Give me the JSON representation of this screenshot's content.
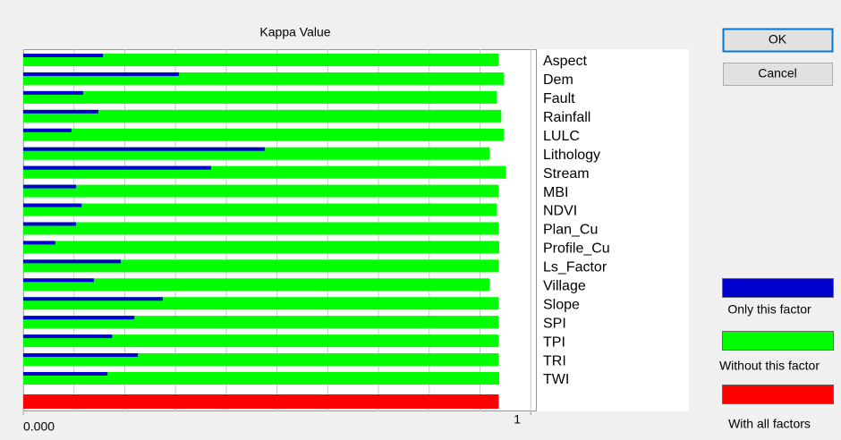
{
  "chart_data": {
    "type": "bar",
    "orientation": "horizontal",
    "title": "Kappa Value",
    "categories": [
      "Aspect",
      "Dem",
      "Fault",
      "Rainfall",
      "LULC",
      "Lithology",
      "Stream",
      "MBI",
      "NDVI",
      "Plan_Cu",
      "Profile_Cu",
      "Ls_Factor",
      "Village",
      "Slope",
      "SPI",
      "TPI",
      "TRI",
      "TWI"
    ],
    "series": [
      {
        "name": "Only this factor",
        "color": "#0000cc",
        "values": [
          0.157,
          0.307,
          0.118,
          0.148,
          0.095,
          0.476,
          0.37,
          0.104,
          0.115,
          0.104,
          0.063,
          0.192,
          0.139,
          0.275,
          0.219,
          0.175,
          0.226,
          0.166
        ]
      },
      {
        "name": "Without this factor",
        "color": "#00ff00",
        "values": [
          0.937,
          0.947,
          0.933,
          0.942,
          0.947,
          0.919,
          0.951,
          0.937,
          0.933,
          0.937,
          0.938,
          0.937,
          0.919,
          0.937,
          0.937,
          0.937,
          0.937,
          0.938
        ]
      }
    ],
    "baseline": {
      "name": "With all factors",
      "color": "#ff0000",
      "value": 0.937
    },
    "xlim": [
      0,
      1.012
    ],
    "xticks": [
      {
        "value": 0,
        "label": "0.000"
      },
      1
    ],
    "gridlines": [
      0,
      0.1,
      0.2,
      0.3,
      0.4,
      0.5,
      0.6,
      0.7,
      0.8,
      0.9,
      1
    ]
  },
  "buttons": [
    "OK",
    "Cancel"
  ]
}
